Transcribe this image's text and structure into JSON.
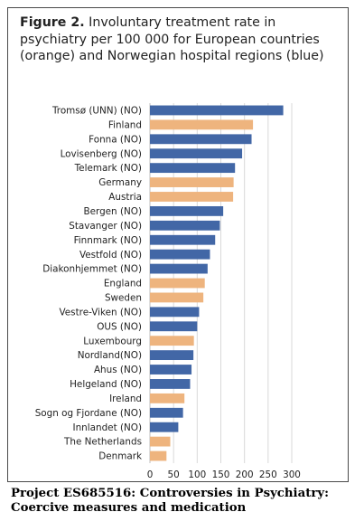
{
  "figure": {
    "label": "Figure 2.",
    "title": "Involuntary treatment rate in psychiatry per 100 000 for European countries (orange) and Norwegian hospital regions (blue)"
  },
  "caption": {
    "line1": "Project ES685516: Controversies in Psychiatry:",
    "line2": "Coercive measures and medication"
  },
  "colors": {
    "norwegian": "#4267a6",
    "european": "#eeb47e",
    "axis": "#222222"
  },
  "chart_data": {
    "type": "bar",
    "orientation": "horizontal",
    "categories": [
      "Tromsø (UNN) (NO)",
      "Finland",
      "Fonna (NO)",
      "Lovisenberg (NO)",
      "Telemark (NO)",
      "Germany",
      "Austria",
      "Bergen (NO)",
      "Stavanger (NO)",
      "Finnmark (NO)",
      "Vestfold (NO)",
      "Diakonhjemmet (NO)",
      "England",
      "Sweden",
      "Vestre-Viken (NO)",
      "OUS (NO)",
      "Luxembourg",
      "Nordland(NO)",
      "Ahus (NO)",
      "Helgeland (NO)",
      "Ireland",
      "Sogn og Fjordane (NO)",
      "Innlandet (NO)",
      "The Netherlands",
      "Denmark"
    ],
    "values": [
      282,
      218,
      215,
      195,
      180,
      177,
      176,
      155,
      148,
      138,
      127,
      122,
      116,
      113,
      104,
      100,
      93,
      92,
      88,
      85,
      73,
      70,
      60,
      43,
      35
    ],
    "groups": [
      "norwegian",
      "european",
      "norwegian",
      "norwegian",
      "norwegian",
      "european",
      "european",
      "norwegian",
      "norwegian",
      "norwegian",
      "norwegian",
      "norwegian",
      "european",
      "european",
      "norwegian",
      "norwegian",
      "european",
      "norwegian",
      "norwegian",
      "norwegian",
      "european",
      "norwegian",
      "norwegian",
      "european",
      "european"
    ],
    "xticks": [
      0,
      50,
      100,
      150,
      200,
      250,
      300
    ],
    "xlim": [
      0,
      300
    ],
    "grid": true
  }
}
